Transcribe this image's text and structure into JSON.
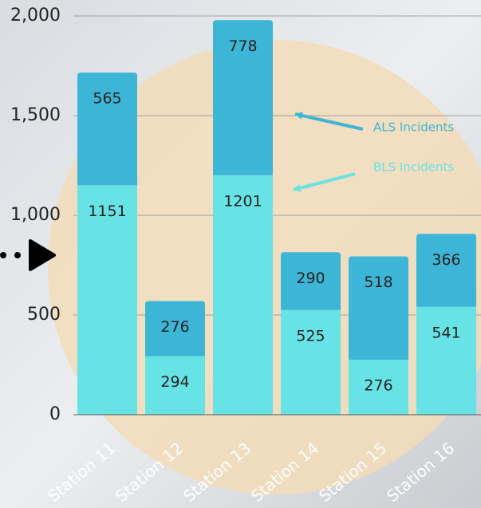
{
  "chart_data": {
    "type": "stacked_bar",
    "categories": [
      "Station 11",
      "Station 12",
      "Station 13",
      "Station 14",
      "Station 15",
      "Station 16"
    ],
    "series": [
      {
        "name": "BLS Incidents",
        "color": "#67e3e6",
        "values": [
          1151,
          294,
          1201,
          525,
          276,
          541
        ]
      },
      {
        "name": "ALS Incidents",
        "color": "#3db5d6",
        "values": [
          565,
          276,
          778,
          290,
          518,
          366
        ]
      }
    ],
    "ylim": [
      0,
      2000
    ],
    "yticks": [
      0,
      500,
      {
        "value": 1000,
        "label": "1,000"
      },
      {
        "value": 1500,
        "label": "1,500"
      },
      {
        "value": 2000,
        "label": "2,000"
      }
    ],
    "grid": true
  }
}
